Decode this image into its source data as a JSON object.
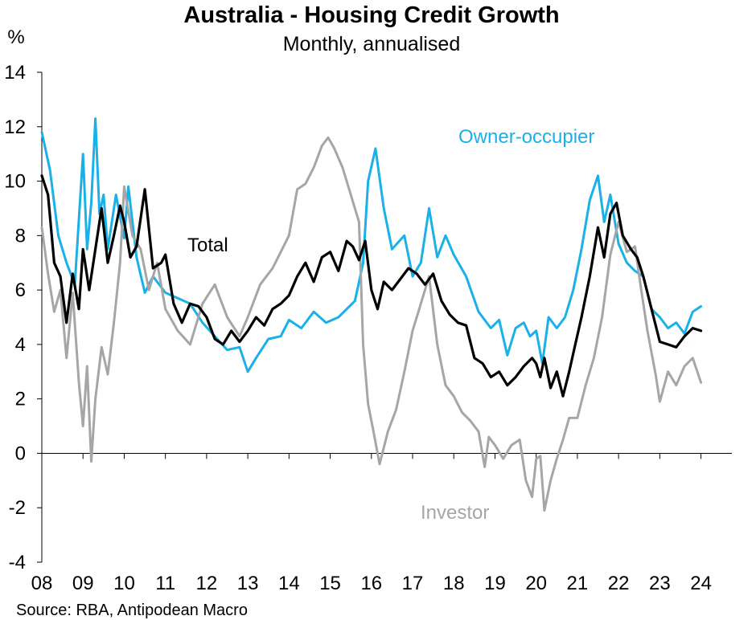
{
  "chart_data": {
    "type": "line",
    "title": "Australia - Housing Credit Growth",
    "subtitle": "Monthly, annualised",
    "ylabel": "%",
    "ylim": [
      -4,
      14
    ],
    "yticks": [
      "14",
      "12",
      "10",
      "8",
      "6",
      "4",
      "2",
      "0",
      "-2",
      "-4"
    ],
    "xlim": [
      2008.0,
      2024.75
    ],
    "xtick_labels": [
      "08",
      "09",
      "10",
      "11",
      "12",
      "13",
      "14",
      "15",
      "16",
      "17",
      "18",
      "19",
      "20",
      "21",
      "22",
      "23",
      "24"
    ],
    "source": "Source: RBA, Antipodean Macro",
    "series": [
      {
        "name": "Owner-occupier",
        "color": "#1ab0e8",
        "x": [
          2008.0,
          2008.2,
          2008.4,
          2008.6,
          2008.8,
          2009.0,
          2009.1,
          2009.2,
          2009.3,
          2009.4,
          2009.5,
          2009.6,
          2009.8,
          2010.0,
          2010.1,
          2010.3,
          2010.5,
          2010.7,
          2011.0,
          2011.3,
          2011.6,
          2011.9,
          2012.2,
          2012.5,
          2012.8,
          2013.0,
          2013.2,
          2013.5,
          2013.8,
          2014.0,
          2014.3,
          2014.6,
          2014.9,
          2015.2,
          2015.4,
          2015.6,
          2015.8,
          2015.92,
          2016.1,
          2016.3,
          2016.5,
          2016.8,
          2017.0,
          2017.2,
          2017.4,
          2017.6,
          2017.8,
          2018.0,
          2018.3,
          2018.6,
          2018.9,
          2019.1,
          2019.3,
          2019.5,
          2019.7,
          2019.85,
          2020.0,
          2020.15,
          2020.3,
          2020.5,
          2020.7,
          2020.9,
          2021.1,
          2021.3,
          2021.5,
          2021.65,
          2021.8,
          2022.0,
          2022.2,
          2022.4,
          2022.6,
          2022.8,
          2023.0,
          2023.2,
          2023.4,
          2023.6,
          2023.8,
          2024.0
        ],
        "values": [
          11.8,
          10.4,
          8.0,
          7.0,
          6.2,
          11.0,
          7.5,
          9.2,
          12.3,
          8.8,
          9.5,
          7.5,
          9.5,
          7.9,
          9.8,
          7.2,
          5.9,
          6.5,
          5.9,
          5.7,
          5.5,
          4.8,
          4.3,
          3.8,
          3.9,
          3.0,
          3.5,
          4.2,
          4.3,
          4.9,
          4.6,
          5.2,
          4.8,
          5.0,
          5.3,
          5.6,
          7.0,
          10.0,
          11.2,
          9.0,
          7.5,
          8.0,
          6.5,
          7.0,
          9.0,
          7.2,
          8.0,
          7.3,
          6.5,
          5.2,
          4.6,
          4.9,
          3.6,
          4.6,
          4.8,
          4.3,
          4.5,
          3.3,
          5.0,
          4.6,
          5.0,
          6.0,
          7.5,
          9.3,
          10.2,
          8.5,
          9.5,
          7.7,
          7.0,
          6.7,
          6.5,
          5.3,
          5.0,
          4.6,
          4.8,
          4.4,
          5.2,
          5.4
        ]
      },
      {
        "name": "Investor",
        "color": "#a6a6a6",
        "x": [
          2008.0,
          2008.15,
          2008.3,
          2008.45,
          2008.6,
          2008.75,
          2008.9,
          2009.0,
          2009.1,
          2009.2,
          2009.3,
          2009.45,
          2009.6,
          2009.75,
          2009.9,
          2010.0,
          2010.2,
          2010.4,
          2010.6,
          2010.8,
          2011.0,
          2011.3,
          2011.6,
          2011.9,
          2012.2,
          2012.5,
          2012.8,
          2013.0,
          2013.3,
          2013.6,
          2013.8,
          2014.0,
          2014.2,
          2014.4,
          2014.6,
          2014.8,
          2014.95,
          2015.1,
          2015.3,
          2015.5,
          2015.7,
          2015.8,
          2015.92,
          2016.05,
          2016.2,
          2016.4,
          2016.6,
          2016.8,
          2017.0,
          2017.2,
          2017.4,
          2017.6,
          2017.8,
          2018.0,
          2018.2,
          2018.4,
          2018.6,
          2018.75,
          2018.85,
          2019.0,
          2019.2,
          2019.4,
          2019.6,
          2019.75,
          2019.9,
          2020.0,
          2020.1,
          2020.2,
          2020.35,
          2020.5,
          2020.65,
          2020.8,
          2021.0,
          2021.2,
          2021.4,
          2021.6,
          2021.8,
          2022.0,
          2022.2,
          2022.4,
          2022.55,
          2022.7,
          2022.9,
          2023.0,
          2023.2,
          2023.4,
          2023.6,
          2023.8,
          2024.0
        ],
        "values": [
          8.3,
          6.6,
          5.2,
          6.0,
          3.5,
          5.9,
          2.6,
          1.0,
          3.2,
          -0.3,
          2.0,
          3.9,
          2.9,
          4.8,
          7.0,
          9.8,
          8.0,
          7.5,
          6.0,
          7.0,
          5.3,
          4.5,
          4.0,
          5.5,
          6.2,
          5.0,
          4.3,
          5.0,
          6.2,
          6.8,
          7.4,
          8.0,
          9.7,
          9.9,
          10.5,
          11.3,
          11.6,
          11.2,
          10.5,
          9.5,
          8.5,
          4.0,
          1.8,
          0.8,
          -0.4,
          0.8,
          1.6,
          3.0,
          4.5,
          5.5,
          6.5,
          4.0,
          2.5,
          2.1,
          1.5,
          1.2,
          0.8,
          -0.5,
          0.6,
          0.3,
          -0.2,
          0.3,
          0.5,
          -1.0,
          -1.6,
          -0.2,
          -0.1,
          -2.1,
          -1.0,
          -0.2,
          0.5,
          1.3,
          1.3,
          2.5,
          3.5,
          5.0,
          7.3,
          8.5,
          7.4,
          7.6,
          6.0,
          4.5,
          2.9,
          1.9,
          3.0,
          2.5,
          3.2,
          3.5,
          2.6
        ]
      },
      {
        "name": "Total",
        "color": "#000000",
        "x": [
          2008.0,
          2008.15,
          2008.3,
          2008.45,
          2008.6,
          2008.75,
          2008.9,
          2009.0,
          2009.15,
          2009.3,
          2009.45,
          2009.6,
          2009.75,
          2009.9,
          2010.0,
          2010.15,
          2010.3,
          2010.5,
          2010.7,
          2010.9,
          2011.0,
          2011.2,
          2011.4,
          2011.6,
          2011.8,
          2012.0,
          2012.2,
          2012.4,
          2012.6,
          2012.8,
          2013.0,
          2013.2,
          2013.4,
          2013.6,
          2013.8,
          2014.0,
          2014.2,
          2014.4,
          2014.6,
          2014.8,
          2015.0,
          2015.2,
          2015.4,
          2015.55,
          2015.7,
          2015.85,
          2016.0,
          2016.15,
          2016.3,
          2016.5,
          2016.7,
          2016.9,
          2017.1,
          2017.3,
          2017.5,
          2017.7,
          2017.9,
          2018.1,
          2018.3,
          2018.5,
          2018.7,
          2018.9,
          2019.1,
          2019.3,
          2019.5,
          2019.7,
          2019.9,
          2020.0,
          2020.1,
          2020.2,
          2020.35,
          2020.5,
          2020.65,
          2020.8,
          2020.95,
          2021.1,
          2021.3,
          2021.5,
          2021.65,
          2021.8,
          2021.95,
          2022.1,
          2022.3,
          2022.45,
          2022.6,
          2022.8,
          2023.0,
          2023.2,
          2023.4,
          2023.6,
          2023.8,
          2024.0
        ],
        "values": [
          10.2,
          9.5,
          7.0,
          6.5,
          4.8,
          6.6,
          5.3,
          7.5,
          6.0,
          7.5,
          9.0,
          7.0,
          8.0,
          9.1,
          8.5,
          7.2,
          7.6,
          9.7,
          6.8,
          7.0,
          7.3,
          5.5,
          4.8,
          5.5,
          5.4,
          5.0,
          4.2,
          4.0,
          4.5,
          4.1,
          4.5,
          5.0,
          4.7,
          5.3,
          5.5,
          5.8,
          6.5,
          7.0,
          6.3,
          7.2,
          7.4,
          6.7,
          7.8,
          7.6,
          7.1,
          7.8,
          6.0,
          5.3,
          6.3,
          6.0,
          6.4,
          6.8,
          6.6,
          6.2,
          6.6,
          5.6,
          5.1,
          4.8,
          4.7,
          3.5,
          3.3,
          2.8,
          3.0,
          2.5,
          2.8,
          3.2,
          3.5,
          3.3,
          2.8,
          3.5,
          2.4,
          3.0,
          2.1,
          3.0,
          4.0,
          5.0,
          6.5,
          8.3,
          7.2,
          8.8,
          9.2,
          8.0,
          7.5,
          7.2,
          6.5,
          5.3,
          4.1,
          4.0,
          3.9,
          4.3,
          4.6,
          4.5
        ]
      }
    ]
  },
  "labels": {
    "owner": "Owner-occupier",
    "investor": "Investor",
    "total": "Total"
  }
}
